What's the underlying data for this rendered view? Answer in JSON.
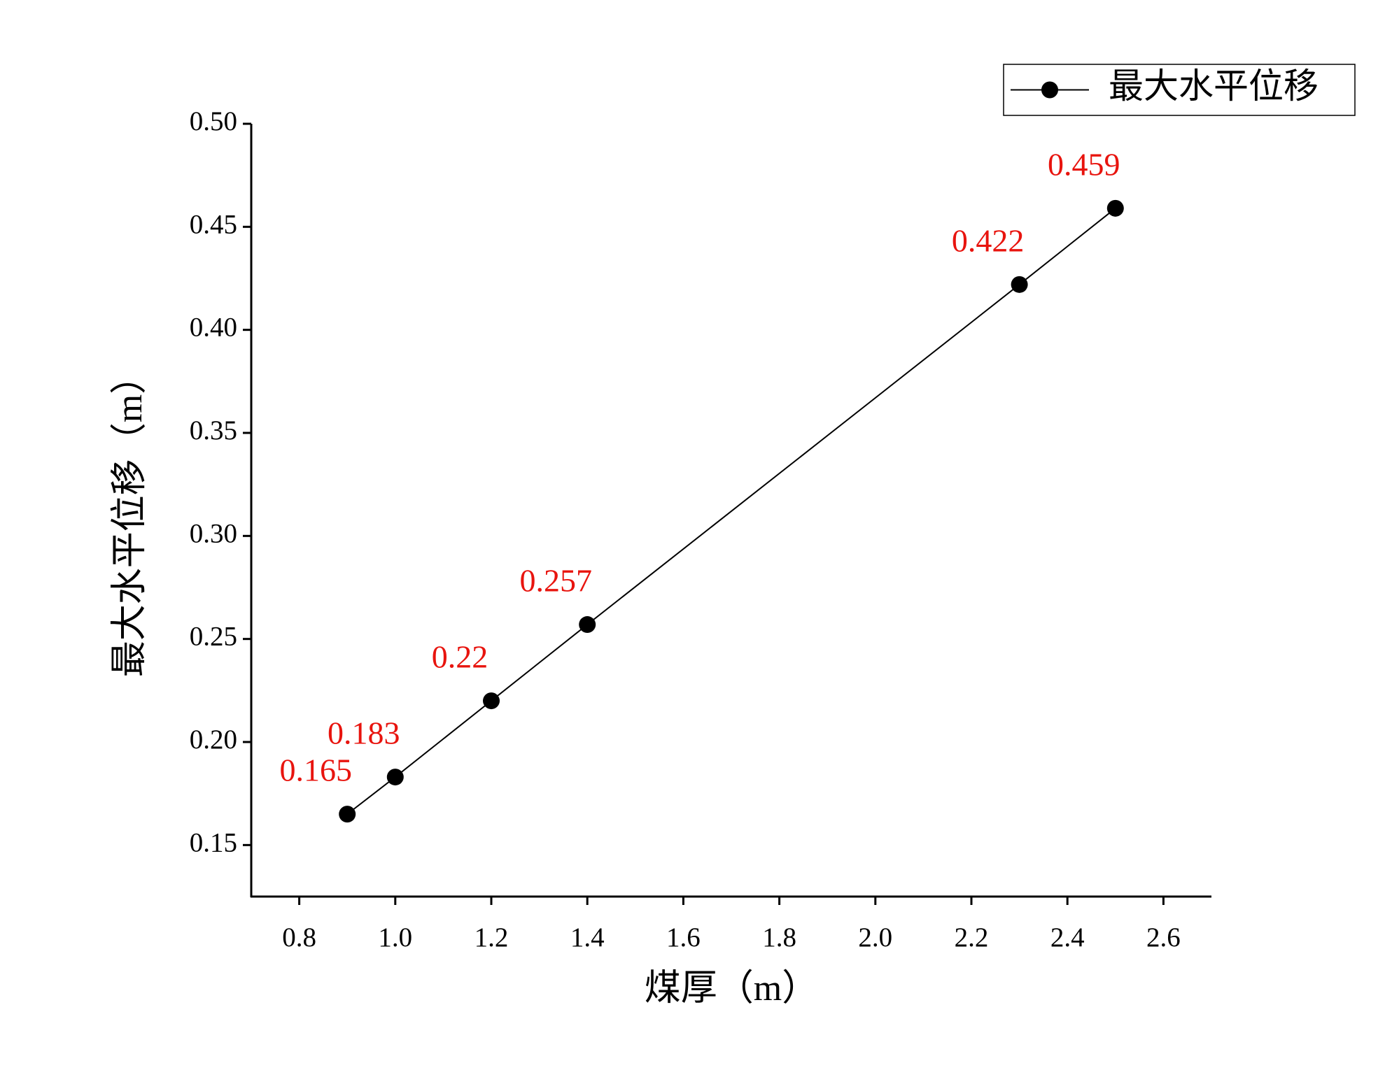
{
  "chart_data": {
    "type": "line",
    "x_label": "煤厚（m）",
    "y_label": "最大水平位移（m）",
    "x": [
      0.9,
      1.0,
      1.2,
      1.4,
      2.3,
      2.5
    ],
    "series": [
      {
        "name": "最大水平位移",
        "color": "#000000",
        "values": [
          0.165,
          0.183,
          0.22,
          0.257,
          0.422,
          0.459
        ]
      }
    ],
    "value_label_color": "#e8140e",
    "xlim": [
      0.7,
      2.7
    ],
    "xticks": [
      0.8,
      {
        "value": 1.0,
        "label": "1.0"
      },
      1.2,
      1.4,
      1.6,
      1.8,
      {
        "value": 2.0,
        "label": "2.0"
      },
      2.2,
      2.4,
      2.6
    ],
    "ylim": [
      0.125,
      0.5
    ],
    "yticks": [
      0.15,
      {
        "value": 0.2,
        "label": "0.20"
      },
      0.25,
      {
        "value": 0.3,
        "label": "0.30"
      },
      0.35,
      {
        "value": 0.4,
        "label": "0.40"
      },
      0.45,
      {
        "value": 0.5,
        "label": "0.50"
      }
    ],
    "legend": "top-right",
    "grid": false
  }
}
